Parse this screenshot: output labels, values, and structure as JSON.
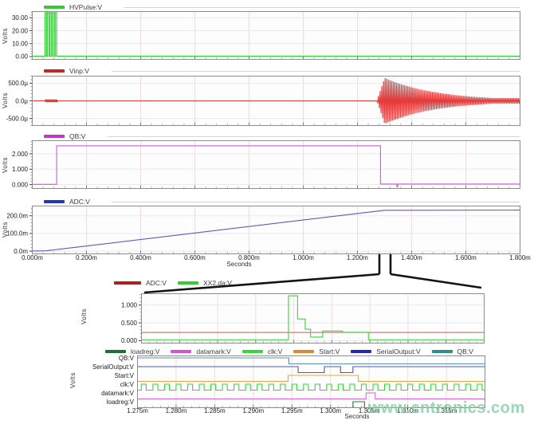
{
  "watermark": {
    "text": "www.cntronics.com",
    "color": "#7fcfa4"
  },
  "units": {
    "x": "Seconds",
    "y": "Volts"
  },
  "chart_data": [
    {
      "id": "hvpulse",
      "type": "line",
      "legend": [
        {
          "label": "HVPulse:V",
          "color": "#33cc33"
        }
      ],
      "ylabel": "Volts",
      "xlim_ms": [
        0,
        1.8
      ],
      "ylim": [
        -2.2,
        34.8
      ],
      "yticks": [
        {
          "v": 0,
          "label": "0.00"
        },
        {
          "v": 10,
          "label": "10.00"
        },
        {
          "v": 20,
          "label": "20.00"
        },
        {
          "v": 30,
          "label": "30.00"
        }
      ],
      "yminor": 2,
      "grid_ms": [
        0.2,
        0.4,
        0.6,
        0.8,
        1.0,
        1.2,
        1.4,
        1.6
      ],
      "minor_ms": 0.04,
      "series": [
        {
          "name": "HVPulse:V",
          "color": "#2ed32e",
          "kind": "pulse_burst",
          "baseline": 0.3,
          "high": 34,
          "burst_start_ms": 0.047,
          "burst_end_ms": 0.094,
          "pulses": 5,
          "duty": 0.6
        }
      ]
    },
    {
      "id": "vinp",
      "type": "line",
      "legend": [
        {
          "label": "Vinp:V",
          "color": "#c22828"
        }
      ],
      "ylabel": "Volts",
      "xlim_ms": [
        0,
        1.8
      ],
      "ylim": [
        -700,
        700
      ],
      "yticks": [
        {
          "v": -500,
          "label": "-500.0µ"
        },
        {
          "v": 0,
          "label": "0.0µ"
        },
        {
          "v": 500,
          "label": "500.0µ"
        }
      ],
      "yminor": 100,
      "grid_ms": [
        0.2,
        0.4,
        0.6,
        0.8,
        1.0,
        1.2,
        1.4,
        1.6
      ],
      "minor_ms": 0.04,
      "series": [
        {
          "name": "Vinp:V",
          "color": "#e43c3c",
          "kind": "ring",
          "unit": "µV",
          "flat": 0,
          "blip": {
            "start_ms": 0.047,
            "end_ms": 0.094,
            "amp": 38,
            "period_ms": 0.004
          },
          "burst": {
            "start_ms": 1.272,
            "ramp_ms": 0.028,
            "peak": 650,
            "tau_ms": 0.19,
            "floor": 80,
            "period_ms": 0.006
          }
        }
      ]
    },
    {
      "id": "qb",
      "type": "line",
      "legend": [
        {
          "label": "QB:V",
          "color": "#c238c2"
        }
      ],
      "ylabel": "Volts",
      "xlim_ms": [
        0,
        1.8
      ],
      "ylim": [
        -0.25,
        2.85
      ],
      "yticks": [
        {
          "v": 0,
          "label": "0.000"
        },
        {
          "v": 1,
          "label": "1.000"
        },
        {
          "v": 2,
          "label": "2.000"
        }
      ],
      "yminor": 0.2,
      "grid_ms": [
        0.2,
        0.4,
        0.6,
        0.8,
        1.0,
        1.2,
        1.4,
        1.6
      ],
      "minor_ms": 0.04,
      "series": [
        {
          "name": "QB:V",
          "color": "#cf5ad0",
          "kind": "steps",
          "points_ms_v": [
            [
              0,
              0.02
            ],
            [
              0.09,
              0.02
            ],
            [
              0.09,
              2.52
            ],
            [
              1.285,
              2.52
            ],
            [
              1.285,
              0.04
            ],
            [
              1.345,
              0.04
            ],
            [
              1.345,
              -0.13
            ],
            [
              1.349,
              -0.13
            ],
            [
              1.349,
              0.04
            ],
            [
              1.8,
              0.04
            ]
          ]
        }
      ]
    },
    {
      "id": "adc",
      "type": "line",
      "legend": [
        {
          "label": "ADC:V",
          "color": "#2336b4"
        }
      ],
      "ylabel": "Volts",
      "xlabel": "Seconds",
      "xlim_ms": [
        0,
        1.8
      ],
      "ylim": [
        -15,
        255
      ],
      "yticks": [
        {
          "v": 0,
          "label": "0.0m"
        },
        {
          "v": 100,
          "label": "100.0m"
        },
        {
          "v": 200,
          "label": "200.0m"
        }
      ],
      "yminor": 20,
      "grid_ms": [
        0.2,
        0.4,
        0.6,
        0.8,
        1.0,
        1.2,
        1.4,
        1.6
      ],
      "minor_ms": 0.04,
      "xticks": [
        {
          "t": 0,
          "label": "0.000m"
        },
        {
          "t": 0.2,
          "label": "0.200m"
        },
        {
          "t": 0.4,
          "label": "0.400m"
        },
        {
          "t": 0.6,
          "label": "0.600m"
        },
        {
          "t": 0.8,
          "label": "0.800m"
        },
        {
          "t": 1.0,
          "label": "1.000m"
        },
        {
          "t": 1.2,
          "label": "1.200m"
        },
        {
          "t": 1.4,
          "label": "1.400m"
        },
        {
          "t": 1.6,
          "label": "1.600m"
        },
        {
          "t": 1.8,
          "label": "1.800m"
        }
      ],
      "series": [
        {
          "name": "ADC:V",
          "color": "#5a5cc0",
          "kind": "line",
          "unit": "mV",
          "points_ms_v": [
            [
              0,
              1
            ],
            [
              0.05,
              2
            ],
            [
              1.3,
              231
            ],
            [
              1.8,
              232
            ]
          ]
        }
      ]
    },
    {
      "id": "adc-zoom-inset",
      "type": "line",
      "legend": [
        {
          "label": "ADC:V",
          "color": "#b01f1f"
        },
        {
          "label": "XX2.da:V",
          "color": "#33cc33"
        }
      ],
      "ylabel": "Volts",
      "xlim_ms": [
        1.275,
        1.32
      ],
      "ylim": [
        -0.07,
        1.32
      ],
      "yticks": [
        {
          "v": 0,
          "label": "0.000"
        },
        {
          "v": 0.5,
          "label": "0.500"
        },
        {
          "v": 1,
          "label": "1.000"
        }
      ],
      "yminor": 0.1,
      "grid_ms": [
        1.28,
        1.285,
        1.29,
        1.295,
        1.3,
        1.305,
        1.31,
        1.315
      ],
      "minor_ms": 0.001,
      "series": [
        {
          "name": "ADC:V",
          "color": "#e05050",
          "kind": "const",
          "value": 0.23
        },
        {
          "name": "XX2.da:V",
          "color": "#3fd43f",
          "kind": "steps",
          "points_ms_v": [
            [
              1.275,
              0.025
            ],
            [
              1.2943,
              0.025
            ],
            [
              1.2943,
              1.26
            ],
            [
              1.2955,
              1.26
            ],
            [
              1.2955,
              0.61
            ],
            [
              1.2965,
              0.61
            ],
            [
              1.2965,
              0.32
            ],
            [
              1.2972,
              0.32
            ],
            [
              1.2972,
              0.1
            ],
            [
              1.2988,
              0.1
            ],
            [
              1.2988,
              0.27
            ],
            [
              1.3014,
              0.27
            ],
            [
              1.3014,
              0.235
            ],
            [
              1.3048,
              0.235
            ],
            [
              1.3048,
              0.025
            ],
            [
              1.32,
              0.025
            ]
          ]
        }
      ]
    },
    {
      "id": "logic-timing",
      "type": "line",
      "legend": [
        {
          "label": "loadreg:V",
          "color": "#216f33"
        },
        {
          "label": "datamark:V",
          "color": "#d84fd8"
        },
        {
          "label": "clk:V",
          "color": "#39d839"
        },
        {
          "label": "Start:V",
          "color": "#e08830"
        },
        {
          "label": "SerialOutput:V",
          "color": "#2525bb"
        },
        {
          "label": "QB:V",
          "color": "#2d8f8f"
        }
      ],
      "ylabel": "Volts",
      "xlabel": "Seconds",
      "xlim_ms": [
        1.275,
        1.32
      ],
      "grid_ms": [
        1.28,
        1.285,
        1.29,
        1.295,
        1.3,
        1.305,
        1.31,
        1.315
      ],
      "minor_ms": 0.001,
      "xticks": [
        {
          "t": 1.275,
          "label": "1.275m"
        },
        {
          "t": 1.28,
          "label": "1.280m"
        },
        {
          "t": 1.285,
          "label": "1.285m"
        },
        {
          "t": 1.29,
          "label": "1.290m"
        },
        {
          "t": 1.295,
          "label": "1.295m"
        },
        {
          "t": 1.3,
          "label": "1.300m"
        },
        {
          "t": 1.305,
          "label": "1.305m"
        },
        {
          "t": 1.31,
          "label": "1.310m"
        },
        {
          "t": 1.315,
          "label": "1.315m"
        }
      ],
      "rows": [
        {
          "label": "QB:V",
          "color": "#5b93ad",
          "kind": "digital",
          "edges": [
            [
              1.275,
              1
            ],
            [
              1.2946,
              0
            ]
          ]
        },
        {
          "label": "SerialOutput:V",
          "color": "#5055c8",
          "kind": "digital",
          "edges": [
            [
              1.275,
              1
            ],
            [
              1.2958,
              0
            ],
            [
              1.2992,
              1
            ],
            [
              1.3013,
              0
            ],
            [
              1.3029,
              1
            ]
          ]
        },
        {
          "label": "Start:V",
          "color": "#eda04a",
          "kind": "digital",
          "edges": [
            [
              1.275,
              0
            ],
            [
              1.2945,
              1
            ],
            [
              1.3036,
              0
            ]
          ]
        },
        {
          "label": "clk:V",
          "color": "#39d839",
          "kind": "clock",
          "period_ms": 0.0015,
          "duty": 0.42,
          "first_ms": 1.2755
        },
        {
          "label": "datamark:V",
          "color": "#e060e0",
          "kind": "digital",
          "edges": [
            [
              1.275,
              0
            ],
            [
              1.3046,
              1
            ],
            [
              1.3058,
              0
            ]
          ]
        },
        {
          "label": "loadreg:V",
          "color": "#2a7a3a",
          "kind": "digital",
          "edges": [
            [
              1.275,
              0
            ],
            [
              1.3029,
              1
            ],
            [
              1.3044,
              0
            ]
          ]
        }
      ]
    }
  ]
}
